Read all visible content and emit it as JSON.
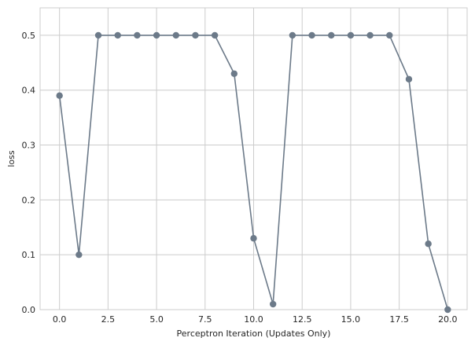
{
  "chart_data": {
    "type": "line",
    "title": "",
    "xlabel": "Perceptron Iteration (Updates Only)",
    "ylabel": "loss",
    "x": [
      0,
      1,
      2,
      3,
      4,
      5,
      6,
      7,
      8,
      9,
      10,
      11,
      12,
      13,
      14,
      15,
      16,
      17,
      18,
      19,
      20
    ],
    "series": [
      {
        "values": [
          0.39,
          0.1,
          0.5,
          0.5,
          0.5,
          0.5,
          0.5,
          0.5,
          0.5,
          0.43,
          0.13,
          0.01,
          0.5,
          0.5,
          0.5,
          0.5,
          0.5,
          0.5,
          0.42,
          0.12,
          0.0
        ],
        "color": "#6c7a89",
        "marker": "circle"
      }
    ],
    "xlim": [
      -1,
      21
    ],
    "ylim": [
      0,
      0.55
    ],
    "xticks": [
      0.0,
      2.5,
      5.0,
      7.5,
      10.0,
      12.5,
      15.0,
      17.5,
      20.0
    ],
    "xtick_labels": [
      "0.0",
      "2.5",
      "5.0",
      "7.5",
      "10.0",
      "12.5",
      "15.0",
      "17.5",
      "20.0"
    ],
    "yticks": [
      0.0,
      0.1,
      0.2,
      0.3,
      0.4,
      0.5
    ],
    "ytick_labels": [
      "0.0",
      "0.1",
      "0.2",
      "0.3",
      "0.4",
      "0.5"
    ],
    "grid": true,
    "legend": "none"
  }
}
